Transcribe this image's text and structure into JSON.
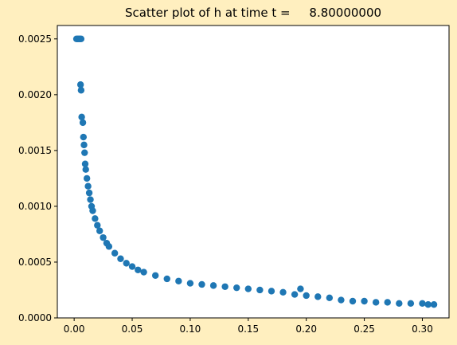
{
  "chart_data": {
    "type": "scatter",
    "title": "Scatter plot of h at time t =     8.80000000",
    "xlabel": "",
    "ylabel": "",
    "xlim": [
      -0.0145,
      0.323
    ],
    "ylim": [
      0.0,
      0.00262
    ],
    "x_ticks": [
      {
        "value": 0.0,
        "label": "0.00"
      },
      {
        "value": 0.05,
        "label": "0.05"
      },
      {
        "value": 0.1,
        "label": "0.10"
      },
      {
        "value": 0.15,
        "label": "0.15"
      },
      {
        "value": 0.2,
        "label": "0.20"
      },
      {
        "value": 0.25,
        "label": "0.25"
      },
      {
        "value": 0.3,
        "label": "0.30"
      }
    ],
    "y_ticks": [
      {
        "value": 0.0,
        "label": "0.0000"
      },
      {
        "value": 0.0005,
        "label": "0.0005"
      },
      {
        "value": 0.001,
        "label": "0.0010"
      },
      {
        "value": 0.0015,
        "label": "0.0015"
      },
      {
        "value": 0.002,
        "label": "0.0020"
      },
      {
        "value": 0.0025,
        "label": "0.0025"
      }
    ],
    "grid": false,
    "legend": "none",
    "marker_color": "#1f77b4",
    "series": [
      {
        "x": [
          0.002,
          0.003,
          0.004,
          0.005,
          0.006,
          0.0055,
          0.006,
          0.0065,
          0.0075,
          0.008,
          0.0085,
          0.009,
          0.0095,
          0.01,
          0.011,
          0.012,
          0.013,
          0.014,
          0.015,
          0.016,
          0.018,
          0.02,
          0.022,
          0.025,
          0.028,
          0.03,
          0.035,
          0.04,
          0.045,
          0.05,
          0.055,
          0.06,
          0.07,
          0.08,
          0.09,
          0.1,
          0.11,
          0.12,
          0.13,
          0.14,
          0.15,
          0.16,
          0.17,
          0.18,
          0.19,
          0.195,
          0.2,
          0.21,
          0.22,
          0.23,
          0.24,
          0.25,
          0.26,
          0.27,
          0.28,
          0.29,
          0.3,
          0.305,
          0.31
        ],
        "y": [
          0.0025,
          0.0025,
          0.0025,
          0.0025,
          0.0025,
          0.00209,
          0.00204,
          0.0018,
          0.00175,
          0.00162,
          0.00155,
          0.00148,
          0.00138,
          0.00133,
          0.00125,
          0.00118,
          0.00112,
          0.00106,
          0.001,
          0.00096,
          0.00089,
          0.00083,
          0.00078,
          0.00072,
          0.00067,
          0.00064,
          0.00058,
          0.00053,
          0.00049,
          0.00046,
          0.00043,
          0.00041,
          0.00038,
          0.00035,
          0.00033,
          0.00031,
          0.0003,
          0.00029,
          0.00028,
          0.00027,
          0.00026,
          0.00025,
          0.00024,
          0.00023,
          0.00021,
          0.00026,
          0.0002,
          0.00019,
          0.00018,
          0.00016,
          0.00015,
          0.00015,
          0.00014,
          0.00014,
          0.00013,
          0.00013,
          0.00013,
          0.00012,
          0.00012
        ]
      }
    ]
  }
}
